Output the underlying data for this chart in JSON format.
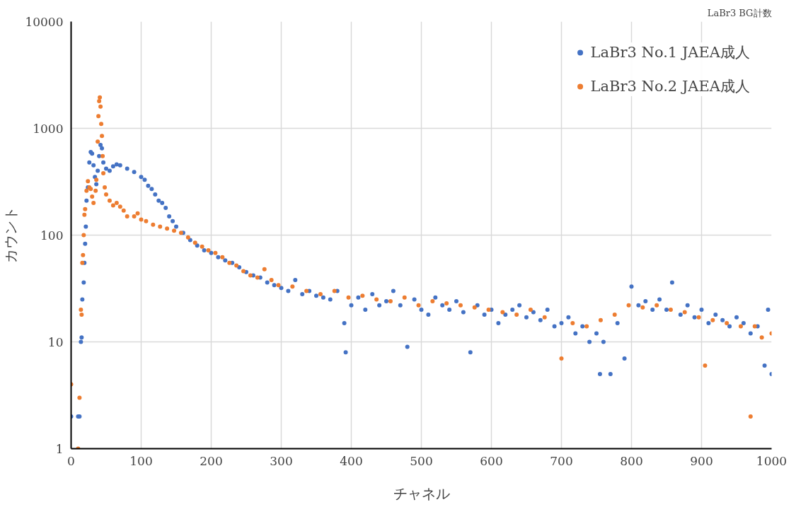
{
  "chart_data": {
    "type": "scatter",
    "title": "LaBr3 BG計数",
    "xlabel": "チャネル",
    "ylabel": "カウント",
    "xlim": [
      0,
      1000
    ],
    "xticks": [
      0,
      100,
      200,
      300,
      400,
      500,
      600,
      700,
      800,
      900,
      1000
    ],
    "ylim": [
      1,
      10000
    ],
    "yticks": [
      1,
      10,
      100,
      1000,
      10000
    ],
    "log": true,
    "grid": true,
    "legend": "top right",
    "marker": "circle",
    "series": [
      {
        "name": "LaBr3 No.1 JAEA成人",
        "color": "#4472c4",
        "x": [
          0,
          10,
          12,
          14,
          15,
          16,
          18,
          19,
          20,
          21,
          22,
          24,
          26,
          28,
          30,
          32,
          34,
          36,
          38,
          40,
          42,
          44,
          46,
          50,
          55,
          60,
          65,
          70,
          80,
          90,
          100,
          105,
          110,
          115,
          120,
          125,
          130,
          135,
          140,
          145,
          150,
          160,
          170,
          180,
          190,
          200,
          210,
          220,
          230,
          240,
          250,
          260,
          270,
          280,
          290,
          300,
          310,
          320,
          330,
          340,
          350,
          360,
          370,
          380,
          390,
          392,
          400,
          410,
          420,
          430,
          440,
          450,
          460,
          470,
          480,
          490,
          500,
          510,
          520,
          530,
          540,
          550,
          560,
          570,
          580,
          590,
          600,
          610,
          620,
          630,
          640,
          650,
          660,
          670,
          680,
          690,
          700,
          710,
          720,
          730,
          740,
          750,
          755,
          760,
          770,
          780,
          790,
          800,
          810,
          820,
          830,
          840,
          850,
          858,
          870,
          880,
          890,
          900,
          910,
          920,
          930,
          940,
          950,
          960,
          970,
          980,
          990,
          995,
          1000
        ],
        "values": [
          2,
          2,
          2,
          10,
          11,
          25,
          36,
          55,
          83,
          120,
          210,
          280,
          480,
          600,
          580,
          450,
          350,
          300,
          400,
          550,
          700,
          650,
          480,
          420,
          400,
          440,
          460,
          450,
          420,
          390,
          350,
          330,
          290,
          270,
          240,
          210,
          200,
          180,
          150,
          135,
          120,
          105,
          90,
          80,
          72,
          68,
          62,
          58,
          55,
          50,
          45,
          42,
          40,
          36,
          34,
          32,
          30,
          38,
          28,
          30,
          27,
          26,
          25,
          30,
          15,
          8,
          22,
          26,
          20,
          28,
          22,
          24,
          30,
          22,
          9,
          25,
          20,
          18,
          26,
          22,
          20,
          24,
          19,
          8,
          22,
          18,
          20,
          15,
          18,
          20,
          22,
          17,
          19,
          16,
          20,
          14,
          15,
          17,
          12,
          14,
          10,
          12,
          5,
          10,
          5,
          15,
          7,
          33,
          22,
          24,
          20,
          25,
          20,
          36,
          18,
          22,
          17,
          20,
          15,
          18,
          16,
          14,
          17,
          15,
          12,
          14,
          6,
          20,
          5
        ]
      },
      {
        "name": "LaBr3 No.2 JAEA成人",
        "color": "#ed7d31",
        "x": [
          0,
          10,
          12,
          14,
          15,
          16,
          17,
          18,
          19,
          20,
          22,
          24,
          26,
          28,
          30,
          32,
          35,
          36,
          38,
          39,
          40,
          41,
          42,
          43,
          44,
          45,
          46,
          48,
          50,
          55,
          60,
          65,
          70,
          75,
          80,
          90,
          95,
          100,
          107,
          117,
          127,
          137,
          147,
          157,
          167,
          177,
          187,
          196,
          206,
          216,
          226,
          236,
          246,
          256,
          266,
          276,
          286,
          296,
          316,
          336,
          356,
          376,
          396,
          416,
          436,
          456,
          476,
          496,
          516,
          536,
          556,
          576,
          596,
          616,
          636,
          656,
          676,
          700,
          716,
          736,
          756,
          776,
          796,
          816,
          836,
          856,
          876,
          896,
          905,
          916,
          936,
          956,
          970,
          976,
          986,
          1000
        ],
        "values": [
          4,
          1,
          3,
          20,
          18,
          55,
          65,
          100,
          155,
          175,
          260,
          320,
          280,
          270,
          230,
          200,
          260,
          330,
          750,
          1300,
          1800,
          1950,
          1600,
          1100,
          850,
          550,
          380,
          280,
          240,
          210,
          190,
          200,
          185,
          170,
          150,
          150,
          160,
          140,
          135,
          125,
          120,
          115,
          110,
          105,
          95,
          85,
          78,
          72,
          68,
          62,
          55,
          52,
          46,
          42,
          40,
          48,
          38,
          34,
          33,
          30,
          28,
          30,
          26,
          27,
          25,
          24,
          26,
          22,
          24,
          23,
          22,
          21,
          20,
          19,
          18,
          20,
          17,
          7,
          15,
          14,
          16,
          18,
          22,
          21,
          22,
          20,
          19,
          17,
          6,
          16,
          15,
          14,
          2,
          14,
          11,
          12
        ]
      }
    ]
  }
}
